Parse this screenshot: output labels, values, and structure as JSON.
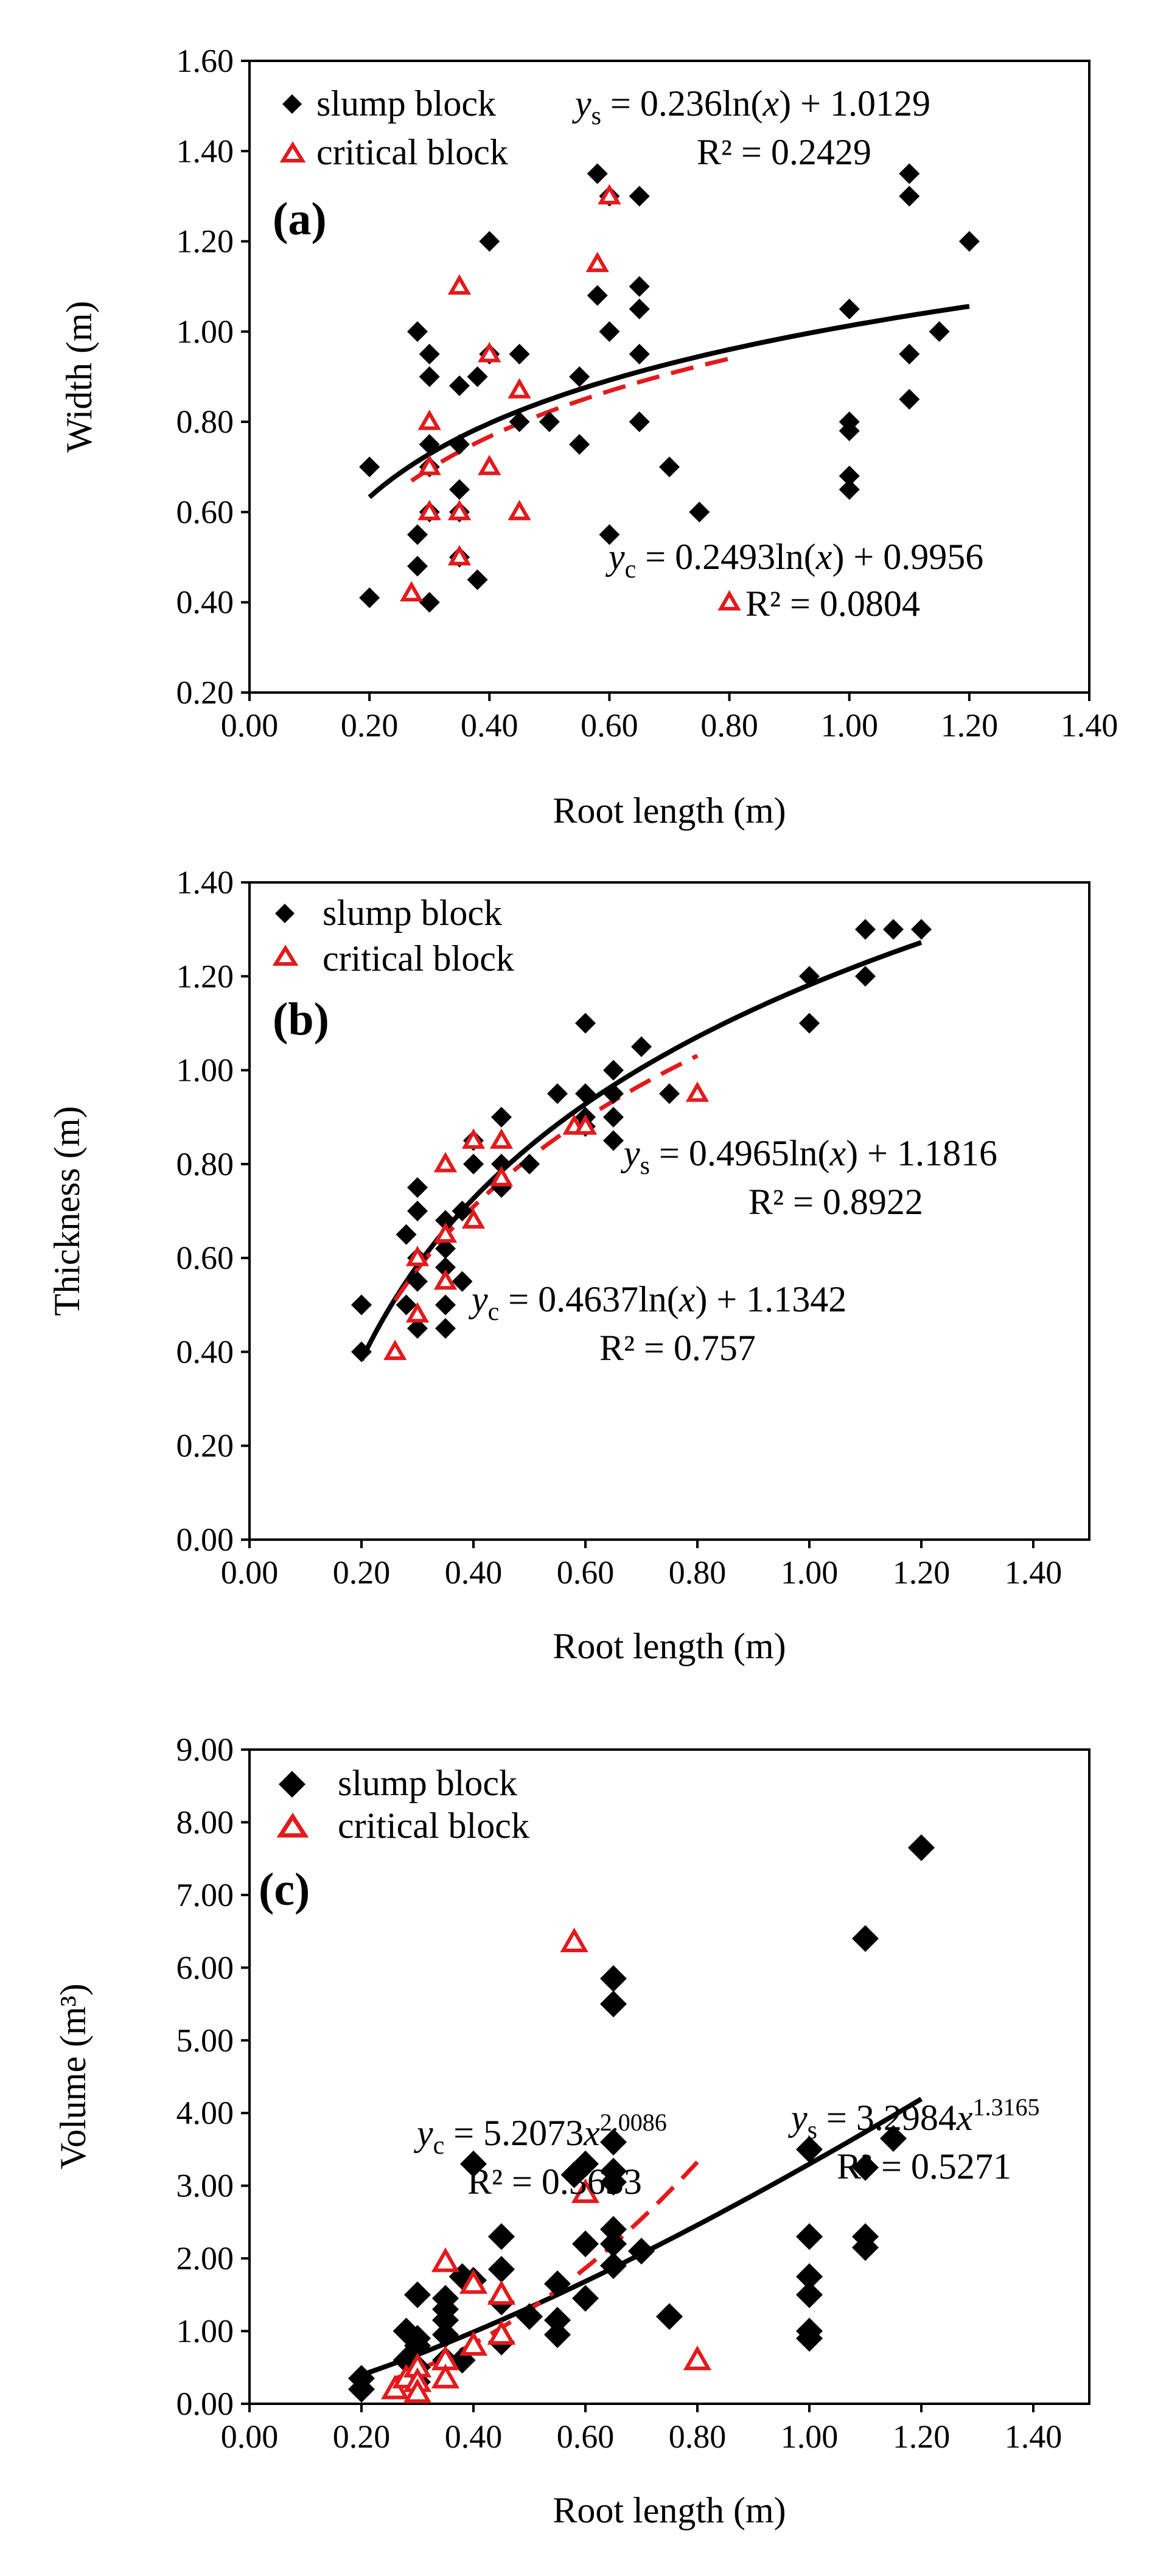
{
  "figure": {
    "description_free": true
  },
  "colors": {
    "slump": "#000000",
    "critical": "#e31a1c"
  },
  "chart_data": [
    {
      "type": "scatter",
      "panel_label": "a",
      "xlabel": "Root length (m)",
      "ylabel": "Width (m)",
      "xlim": [
        0.0,
        1.4
      ],
      "ylim": [
        0.2,
        1.6
      ],
      "xticks": [
        "0.00",
        "0.20",
        "0.40",
        "0.60",
        "0.80",
        "1.00",
        "1.20",
        "1.40"
      ],
      "yticks": [
        "0.20",
        "0.40",
        "0.60",
        "0.80",
        "1.00",
        "1.20",
        "1.40",
        "1.60"
      ],
      "legend": [
        "slump block",
        "critical block"
      ],
      "series": [
        {
          "name": "slump block",
          "marker": "diamond",
          "points": [
            [
              0.2,
              0.7
            ],
            [
              0.2,
              0.41
            ],
            [
              0.28,
              1.0
            ],
            [
              0.28,
              0.55
            ],
            [
              0.28,
              0.48
            ],
            [
              0.3,
              0.95
            ],
            [
              0.3,
              0.9
            ],
            [
              0.3,
              0.75
            ],
            [
              0.3,
              0.7
            ],
            [
              0.3,
              0.6
            ],
            [
              0.3,
              0.4
            ],
            [
              0.35,
              0.88
            ],
            [
              0.35,
              0.75
            ],
            [
              0.35,
              0.65
            ],
            [
              0.35,
              0.6
            ],
            [
              0.35,
              0.5
            ],
            [
              0.38,
              0.9
            ],
            [
              0.38,
              0.45
            ],
            [
              0.4,
              1.2
            ],
            [
              0.4,
              0.95
            ],
            [
              0.45,
              0.95
            ],
            [
              0.45,
              0.8
            ],
            [
              0.5,
              0.8
            ],
            [
              0.55,
              0.9
            ],
            [
              0.55,
              0.75
            ],
            [
              0.58,
              1.35
            ],
            [
              0.58,
              1.08
            ],
            [
              0.6,
              1.3
            ],
            [
              0.6,
              1.0
            ],
            [
              0.6,
              0.55
            ],
            [
              0.65,
              1.3
            ],
            [
              0.65,
              1.1
            ],
            [
              0.65,
              1.05
            ],
            [
              0.65,
              0.95
            ],
            [
              0.65,
              0.8
            ],
            [
              0.7,
              0.7
            ],
            [
              0.75,
              0.6
            ],
            [
              1.0,
              1.05
            ],
            [
              1.0,
              0.8
            ],
            [
              1.0,
              0.78
            ],
            [
              1.0,
              0.68
            ],
            [
              1.0,
              0.65
            ],
            [
              1.1,
              1.35
            ],
            [
              1.1,
              1.3
            ],
            [
              1.1,
              0.95
            ],
            [
              1.1,
              0.85
            ],
            [
              1.15,
              1.0
            ],
            [
              1.2,
              1.2
            ]
          ]
        },
        {
          "name": "critical block",
          "marker": "triangle",
          "points": [
            [
              0.27,
              0.42
            ],
            [
              0.3,
              0.8
            ],
            [
              0.3,
              0.6
            ],
            [
              0.3,
              0.7
            ],
            [
              0.35,
              1.1
            ],
            [
              0.35,
              0.6
            ],
            [
              0.35,
              0.5
            ],
            [
              0.4,
              0.95
            ],
            [
              0.4,
              0.7
            ],
            [
              0.45,
              0.87
            ],
            [
              0.45,
              0.6
            ],
            [
              0.58,
              1.15
            ],
            [
              0.6,
              1.3
            ],
            [
              0.8,
              0.4
            ]
          ]
        }
      ],
      "trendlines": [
        {
          "series": "slump block",
          "model": "log",
          "a": 0.236,
          "b": 1.0129,
          "x_range": [
            0.2,
            1.2
          ]
        },
        {
          "series": "critical block",
          "model": "log",
          "a": 0.2493,
          "b": 0.9956,
          "x_range": [
            0.27,
            0.8
          ]
        }
      ],
      "annotations": {
        "slump_eq": {
          "var": "y",
          "sub": "s",
          "body": " = 0.236ln(",
          "x": "x",
          "tail": ") + 1.0129"
        },
        "slump_r2": "R² = 0.2429",
        "critical_eq": {
          "var": "y",
          "sub": "c",
          "body": " = 0.2493ln(",
          "x": "x",
          "tail": ") + 0.9956"
        },
        "critical_r2": "R² = 0.0804"
      }
    },
    {
      "type": "scatter",
      "panel_label": "b",
      "xlabel": "Root length (m)",
      "ylabel": "Thickness (m)",
      "xlim": [
        0.0,
        1.5
      ],
      "ylim": [
        0.0,
        1.4
      ],
      "xticks": [
        "0.00",
        "0.20",
        "0.40",
        "0.60",
        "0.80",
        "1.00",
        "1.20",
        "1.40"
      ],
      "yticks": [
        "0.00",
        "0.20",
        "0.40",
        "0.60",
        "0.80",
        "1.00",
        "1.20",
        "1.40"
      ],
      "legend": [
        "slump block",
        "critical block"
      ],
      "series": [
        {
          "name": "slump block",
          "marker": "diamond",
          "points": [
            [
              0.2,
              0.5
            ],
            [
              0.2,
              0.4
            ],
            [
              0.28,
              0.65
            ],
            [
              0.28,
              0.5
            ],
            [
              0.3,
              0.75
            ],
            [
              0.3,
              0.7
            ],
            [
              0.3,
              0.6
            ],
            [
              0.3,
              0.55
            ],
            [
              0.3,
              0.45
            ],
            [
              0.35,
              0.68
            ],
            [
              0.35,
              0.62
            ],
            [
              0.35,
              0.58
            ],
            [
              0.35,
              0.5
            ],
            [
              0.35,
              0.45
            ],
            [
              0.38,
              0.7
            ],
            [
              0.38,
              0.55
            ],
            [
              0.4,
              0.85
            ],
            [
              0.4,
              0.8
            ],
            [
              0.45,
              0.9
            ],
            [
              0.45,
              0.8
            ],
            [
              0.45,
              0.75
            ],
            [
              0.5,
              0.8
            ],
            [
              0.55,
              0.95
            ],
            [
              0.6,
              1.1
            ],
            [
              0.6,
              0.95
            ],
            [
              0.6,
              0.9
            ],
            [
              0.6,
              0.88
            ],
            [
              0.65,
              1.0
            ],
            [
              0.65,
              0.95
            ],
            [
              0.65,
              0.9
            ],
            [
              0.65,
              0.85
            ],
            [
              0.7,
              1.05
            ],
            [
              0.75,
              0.95
            ],
            [
              1.0,
              1.2
            ],
            [
              1.0,
              1.1
            ],
            [
              1.1,
              1.3
            ],
            [
              1.1,
              1.2
            ],
            [
              1.15,
              1.3
            ],
            [
              1.2,
              1.3
            ]
          ]
        },
        {
          "name": "critical block",
          "marker": "triangle",
          "points": [
            [
              0.26,
              0.4
            ],
            [
              0.3,
              0.6
            ],
            [
              0.3,
              0.48
            ],
            [
              0.35,
              0.8
            ],
            [
              0.35,
              0.65
            ],
            [
              0.35,
              0.55
            ],
            [
              0.4,
              0.85
            ],
            [
              0.4,
              0.68
            ],
            [
              0.45,
              0.85
            ],
            [
              0.45,
              0.77
            ],
            [
              0.58,
              0.88
            ],
            [
              0.6,
              0.88
            ],
            [
              0.8,
              0.95
            ]
          ]
        }
      ],
      "trendlines": [
        {
          "series": "slump block",
          "model": "log",
          "a": 0.4965,
          "b": 1.1816,
          "x_range": [
            0.2,
            1.2
          ]
        },
        {
          "series": "critical block",
          "model": "log",
          "a": 0.4637,
          "b": 1.1342,
          "x_range": [
            0.26,
            0.8
          ]
        }
      ],
      "annotations": {
        "slump_eq": {
          "var": "y",
          "sub": "s",
          "body": " = 0.4965ln(",
          "x": "x",
          "tail": ") + 1.1816"
        },
        "slump_r2": "R² = 0.8922",
        "critical_eq": {
          "var": "y",
          "sub": "c",
          "body": " = 0.4637ln(",
          "x": "x",
          "tail": ") + 1.1342"
        },
        "critical_r2": "R² = 0.757"
      }
    },
    {
      "type": "scatter",
      "panel_label": "c",
      "xlabel": "Root length (m)",
      "ylabel": "Volume (m³)",
      "xlim": [
        0.0,
        1.5
      ],
      "ylim": [
        0.0,
        9.0
      ],
      "xticks": [
        "0.00",
        "0.20",
        "0.40",
        "0.60",
        "0.80",
        "1.00",
        "1.20",
        "1.40"
      ],
      "yticks": [
        "0.00",
        "1.00",
        "2.00",
        "3.00",
        "4.00",
        "5.00",
        "6.00",
        "7.00",
        "8.00",
        "9.00"
      ],
      "legend": [
        "slump block",
        "critical block"
      ],
      "series": [
        {
          "name": "slump block",
          "marker": "diamond",
          "points": [
            [
              0.2,
              0.35
            ],
            [
              0.2,
              0.2
            ],
            [
              0.28,
              1.0
            ],
            [
              0.28,
              0.6
            ],
            [
              0.3,
              1.5
            ],
            [
              0.3,
              0.9
            ],
            [
              0.3,
              0.8
            ],
            [
              0.3,
              0.5
            ],
            [
              0.3,
              0.3
            ],
            [
              0.35,
              1.45
            ],
            [
              0.35,
              1.3
            ],
            [
              0.35,
              1.15
            ],
            [
              0.35,
              0.95
            ],
            [
              0.35,
              0.6
            ],
            [
              0.38,
              1.75
            ],
            [
              0.38,
              0.6
            ],
            [
              0.4,
              3.3
            ],
            [
              0.4,
              1.7
            ],
            [
              0.45,
              2.3
            ],
            [
              0.45,
              1.85
            ],
            [
              0.45,
              1.4
            ],
            [
              0.45,
              0.85
            ],
            [
              0.5,
              1.2
            ],
            [
              0.55,
              1.65
            ],
            [
              0.55,
              1.15
            ],
            [
              0.55,
              0.95
            ],
            [
              0.58,
              3.15
            ],
            [
              0.6,
              3.3
            ],
            [
              0.6,
              2.2
            ],
            [
              0.6,
              1.45
            ],
            [
              0.65,
              5.85
            ],
            [
              0.65,
              5.5
            ],
            [
              0.65,
              3.6
            ],
            [
              0.65,
              3.2
            ],
            [
              0.65,
              3.05
            ],
            [
              0.65,
              2.4
            ],
            [
              0.65,
              2.2
            ],
            [
              0.65,
              1.9
            ],
            [
              0.7,
              2.1
            ],
            [
              0.75,
              1.2
            ],
            [
              1.0,
              3.5
            ],
            [
              1.0,
              2.3
            ],
            [
              1.0,
              1.75
            ],
            [
              1.0,
              1.5
            ],
            [
              1.0,
              1.0
            ],
            [
              1.0,
              0.9
            ],
            [
              1.1,
              6.4
            ],
            [
              1.1,
              3.25
            ],
            [
              1.1,
              2.3
            ],
            [
              1.1,
              2.15
            ],
            [
              1.15,
              3.65
            ],
            [
              1.2,
              7.65
            ]
          ]
        },
        {
          "name": "critical block",
          "marker": "triangle",
          "points": [
            [
              0.26,
              0.2
            ],
            [
              0.28,
              0.35
            ],
            [
              0.3,
              0.5
            ],
            [
              0.3,
              0.3
            ],
            [
              0.3,
              0.15
            ],
            [
              0.35,
              1.95
            ],
            [
              0.35,
              0.6
            ],
            [
              0.35,
              0.35
            ],
            [
              0.4,
              1.65
            ],
            [
              0.4,
              0.8
            ],
            [
              0.45,
              1.5
            ],
            [
              0.45,
              0.95
            ],
            [
              0.58,
              6.35
            ],
            [
              0.6,
              2.9
            ],
            [
              0.8,
              0.6
            ]
          ]
        }
      ],
      "trendlines": [
        {
          "series": "slump block",
          "model": "power",
          "a": 3.2984,
          "b": 1.3165,
          "x_range": [
            0.2,
            1.2
          ]
        },
        {
          "series": "critical block",
          "model": "power",
          "a": 5.2073,
          "b": 2.0086,
          "x_range": [
            0.26,
            0.8
          ]
        }
      ],
      "annotations": {
        "slump_eq": {
          "var": "y",
          "sub": "s",
          "body": " = 3.2984",
          "x": "x",
          "sup": "1.3165"
        },
        "slump_r2": "R² = 0.5271",
        "critical_eq": {
          "var": "y",
          "sub": "c",
          "body": " = 5.2073",
          "x": "x",
          "sup": "2.0086"
        },
        "critical_r2": "R² = 0.3633"
      }
    }
  ]
}
